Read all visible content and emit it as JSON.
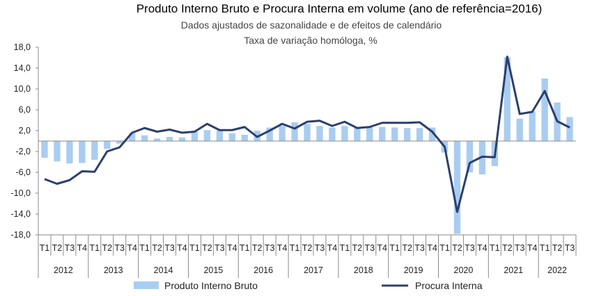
{
  "chart_data": {
    "type": "bar+line",
    "title": "Produto Interno Bruto e Procura Interna em volume (ano de referência=2016)",
    "subtitle_1": "Dados ajustados de sazonalidade e de efeitos de calendário",
    "subtitle_2": "Taxa de variação homóloga, %",
    "ylim": [
      -18.0,
      18.0
    ],
    "y_ticks": [
      "18,0",
      "14,0",
      "10,0",
      "6,0",
      "2,0",
      "-2,0",
      "-6,0",
      "-10,0",
      "-14,0",
      "-18,0"
    ],
    "y_tick_values": [
      18,
      14,
      10,
      6,
      2,
      -2,
      -6,
      -10,
      -14,
      -18
    ],
    "quarters": [
      "T1",
      "T2",
      "T3",
      "T4",
      "T1",
      "T2",
      "T3",
      "T4",
      "T1",
      "T2",
      "T3",
      "T4",
      "T1",
      "T2",
      "T3",
      "T4",
      "T1",
      "T2",
      "T3",
      "T4",
      "T1",
      "T2",
      "T3",
      "T4",
      "T1",
      "T2",
      "T3",
      "T4",
      "T1",
      "T2",
      "T3",
      "T4",
      "T1",
      "T2",
      "T3",
      "T4",
      "T1",
      "T2",
      "T3",
      "T4",
      "T1",
      "T2",
      "T3"
    ],
    "years": [
      "2012",
      "2013",
      "2014",
      "2015",
      "2016",
      "2017",
      "2018",
      "2019",
      "2020",
      "2021",
      "2022"
    ],
    "year_quarter_counts": [
      4,
      4,
      4,
      4,
      4,
      4,
      4,
      4,
      4,
      4,
      3
    ],
    "series": [
      {
        "name": "Produto Interno Bruto",
        "type": "bar",
        "color": "#a9cdf0",
        "values": [
          -3.2,
          -3.9,
          -4.3,
          -4.2,
          -3.6,
          -1.5,
          -0.5,
          1.5,
          1.1,
          0.5,
          0.8,
          0.7,
          1.8,
          2.1,
          2.0,
          1.5,
          1.2,
          2.0,
          2.6,
          2.9,
          3.6,
          3.3,
          2.9,
          2.6,
          2.9,
          2.5,
          2.6,
          2.7,
          2.6,
          2.5,
          2.5,
          2.6,
          -2.2,
          -17.8,
          -6.0,
          -6.4,
          -4.8,
          16.1,
          4.3,
          5.7,
          12.0,
          7.4,
          4.6
        ]
      },
      {
        "name": "Procura Interna",
        "type": "line",
        "color": "#2b3f6f",
        "values": [
          -7.3,
          -8.2,
          -7.5,
          -5.8,
          -5.9,
          -2.0,
          -1.2,
          1.6,
          2.5,
          1.8,
          2.2,
          1.6,
          1.8,
          3.3,
          2.1,
          2.1,
          2.7,
          0.8,
          2.0,
          3.3,
          2.4,
          3.7,
          3.9,
          2.9,
          3.7,
          2.5,
          2.7,
          3.5,
          3.5,
          3.5,
          3.6,
          1.8,
          -1.1,
          -13.6,
          -4.2,
          -3.0,
          -3.1,
          16.2,
          5.2,
          5.6,
          9.6,
          3.8,
          2.6
        ]
      }
    ]
  }
}
